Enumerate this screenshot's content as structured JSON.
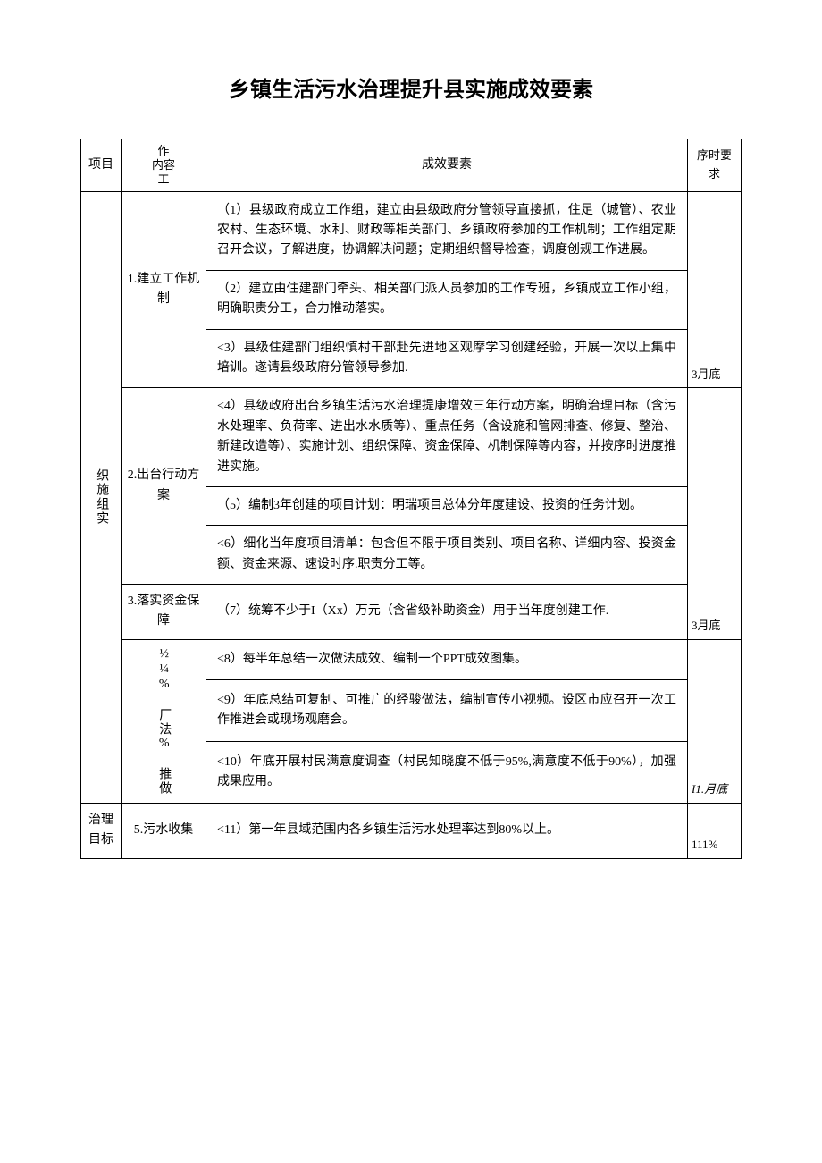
{
  "title": "乡镇生活污水治理提升县实施成效要素",
  "headers": {
    "project": "项目",
    "work_top": "作",
    "work_mid": "内容",
    "work_bot": "工",
    "content": "成效要素",
    "time": "序时要求"
  },
  "rows": {
    "section1_label": "织施组实",
    "work1": "1.建立工作机制",
    "c1": "（1）县级政府成立工作组，建立由县级政府分管领导直接抓，住足（城管）、农业农村、生态环境、水利、财政等相关部门、乡镇政府参加的工作机制；工作组定期召开会议，了解进度，协调解决问题；定期组织督导检查，调度创规工作进展。",
    "c2": "（2）建立由住建部门牵头、相关部门派人员参加的工作专班，乡镇成立工作小组，明确职责分工，合力推动落实。",
    "c3": "<3）县级住建部门组织慎村干部赴先进地区观摩学习创建经验，开展一次以上集中培训。遂请县级政府分管领导参加.",
    "time1": "3月底",
    "work2": "2.出台行动方案",
    "c4": "<4）县级政府出台乡镇生活污水治理提康增效三年行动方案，明确治理目标（含污水处理率、负荷率、进出水水质等）、重点任务（含设施和管网排查、修复、整治、新建改造等）、实施计划、组织保障、资金保障、机制保障等内容，并按序时进度推进实施。",
    "c5": "（5）编制3年创建的项目计划：明瑞项目总体分年度建设、投资的任务计划。",
    "c6": "<6）细化当年度项目清单：包含但不限于项目类别、项目名称、详细内容、投资金额、资金来源、速设时序.职责分工等。",
    "time2": "3月底",
    "work3": "3.落实资金保障",
    "c7": "（7）统筹不少于I（Xx）万元（含省级补助资金）用于当年度创建工作.",
    "work4": "½¼% 厂法% 推做",
    "c8": "<8）每半年总结一次做法成效、编制一个PPT成效图集。",
    "c9": "<9）年底总结可复制、可推广的经骏做法，编制宣传小视频。设区市应召开一次工作推进会或现场观磨会。",
    "c10": "<10）年底开展村民满意度调查（村民知晓度不低于95%,满意度不低于90%），加强成果应用。",
    "time4": "I1.月底",
    "section2_label": "治理目标",
    "work5": "5.污水收集",
    "c11": "<11）第一年县域范围内各乡镇生活污水处理率达到80%以上。",
    "time5": "111%"
  }
}
